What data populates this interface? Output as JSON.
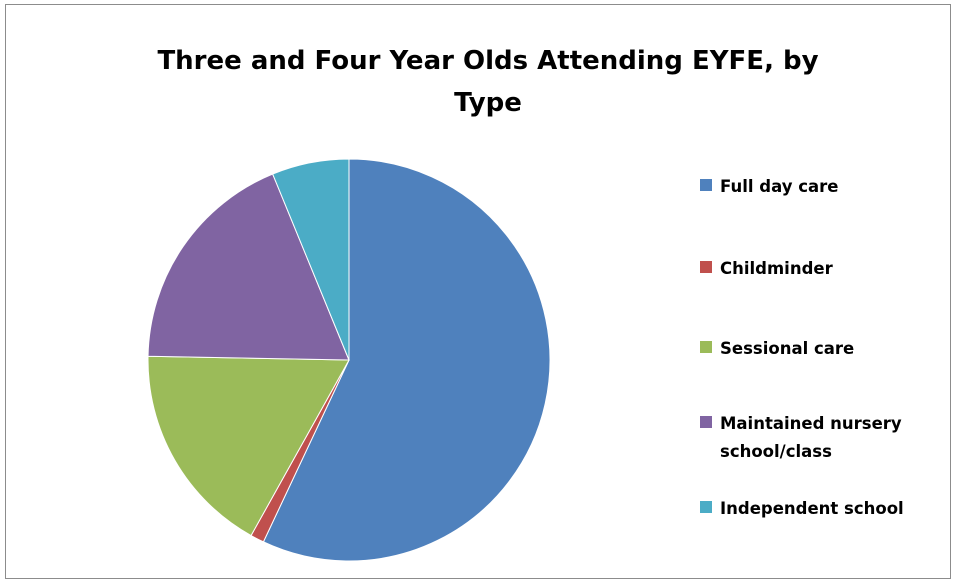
{
  "chart_data": {
    "type": "pie",
    "title_lines": [
      "Three and Four Year Olds Attending EYFE, by",
      "Type"
    ],
    "categories": [
      "Full day care",
      "Childminder",
      "Sessional care",
      "Maintained nursery school/class",
      "Independent school"
    ],
    "legend_lines": [
      [
        "Full day care"
      ],
      [
        "Childminder"
      ],
      [
        "Sessional care"
      ],
      [
        "Maintained nursery",
        "school/class"
      ],
      [
        "Independent school"
      ]
    ],
    "values": [
      57.0,
      1.1,
      17.2,
      18.5,
      6.2
    ],
    "colors": [
      "#4f81bd",
      "#c0504d",
      "#9bbb59",
      "#8064a2",
      "#4bacc6"
    ],
    "start": "12 o'clock, clockwise",
    "legend_position": "right"
  }
}
